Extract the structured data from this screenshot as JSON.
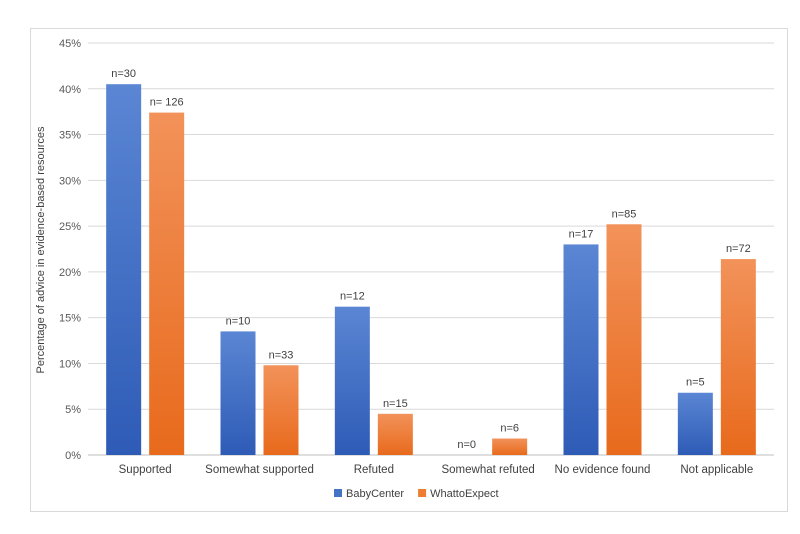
{
  "chart_data": {
    "type": "bar",
    "ylabel": "Percentage of advice in evidence-based resources",
    "xlabel": "",
    "ylim": [
      0,
      45
    ],
    "yticks": [
      "0%",
      "5%",
      "10%",
      "15%",
      "20%",
      "25%",
      "30%",
      "35%",
      "40%",
      "45%"
    ],
    "grid": true,
    "legend_position": "bottom",
    "categories": [
      "Supported",
      "Somewhat supported",
      "Refuted",
      "Somewhat refuted",
      "No evidence found",
      "Not applicable"
    ],
    "series": [
      {
        "name": "BabyCenter",
        "color": "#4472c4",
        "values": [
          40.5,
          13.5,
          16.2,
          0,
          23.0,
          6.8
        ],
        "labels": [
          "n=30",
          "n=10",
          "n=12",
          "n=0",
          "n=17",
          "n=5"
        ]
      },
      {
        "name": "WhattoExpect",
        "color": "#ed7d31",
        "values": [
          37.4,
          9.8,
          4.5,
          1.8,
          25.2,
          21.4
        ],
        "labels": [
          "n= 126",
          "n=33",
          "n=15",
          "n=6",
          "n=85",
          "n=72"
        ]
      }
    ]
  }
}
